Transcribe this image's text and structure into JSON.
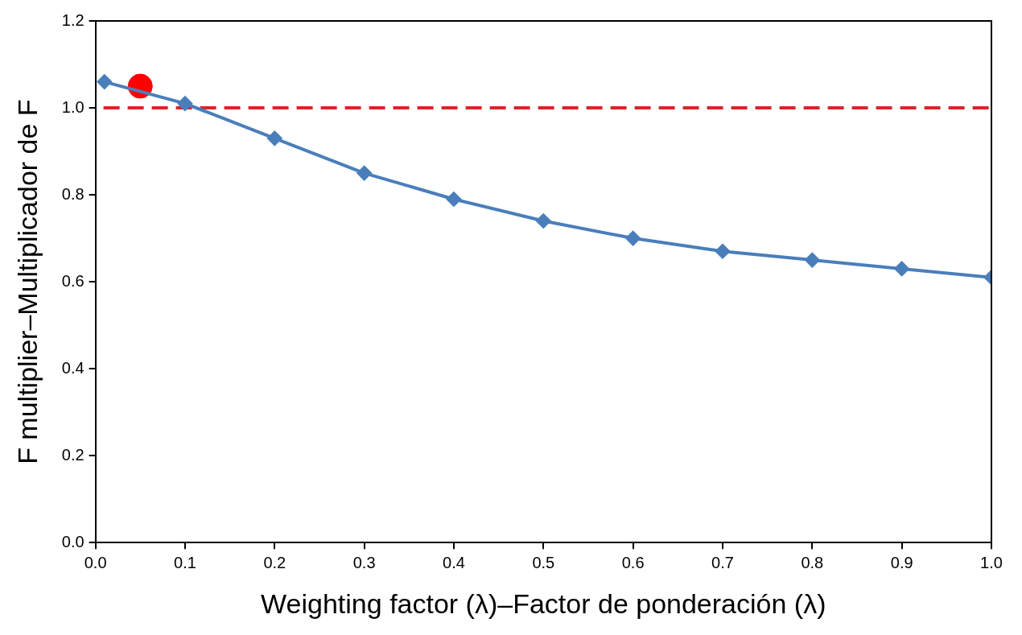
{
  "chart_data": {
    "type": "line",
    "xlabel": "Weighting factor (λ)–Factor de ponderación (λ)",
    "ylabel": "F multiplier–Multiplicador de F",
    "xlim": [
      0,
      1
    ],
    "xticks": [
      "0.0",
      0.1,
      0.2,
      0.3,
      0.4,
      0.5,
      0.6,
      0.7,
      0.8,
      0.9,
      "1.0"
    ],
    "ylim": [
      0,
      1.2
    ],
    "yticks": [
      "0.0",
      0.2,
      0.4,
      0.6,
      0.8,
      "1.0",
      1.2
    ],
    "grid": false,
    "legend": false,
    "series": [
      {
        "type": "line",
        "color": "#4a7ebb",
        "marker": "diamond",
        "line_style": "solid",
        "x": [
          0.01,
          0.1,
          0.2,
          0.3,
          0.4,
          0.5,
          0.6,
          0.7,
          0.8,
          0.9,
          1.0
        ],
        "values": [
          1.06,
          1.01,
          0.93,
          0.85,
          0.79,
          0.74,
          0.7,
          0.67,
          0.65,
          0.63,
          0.61
        ]
      },
      {
        "type": "scatter",
        "color": "#ff0000",
        "marker": "circle",
        "x": [
          0.05
        ],
        "values": [
          1.05
        ]
      }
    ],
    "ref_lines": [
      {
        "axis": "y",
        "value": 1,
        "color": "#d7262b",
        "line_style": "dashed"
      }
    ]
  }
}
